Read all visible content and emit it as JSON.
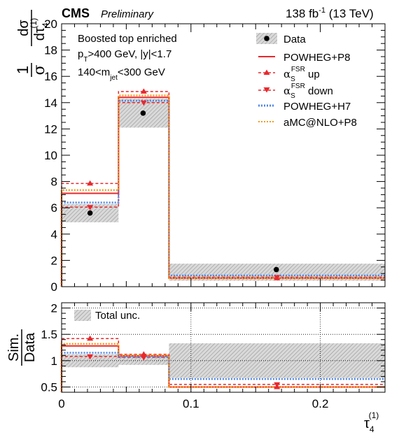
{
  "header": {
    "experiment": "CMS",
    "status": "Preliminary",
    "lumi": "138 fb",
    "lumi_exp": "-1",
    "energy": " (13 TeV)"
  },
  "annotations": {
    "line1": "Boosted top enriched",
    "line2_a": "p",
    "line2_sub": "T",
    "line2_b": ">400 GeV, |y|<1.7",
    "line3_a": "140<m",
    "line3_sub": "jet",
    "line3_b": "<300 GeV"
  },
  "legend": {
    "data": "Data",
    "powheg_p8": "POWHEG+P8",
    "fsr_up_sym": "α",
    "fsr_sub": "S",
    "fsr_sup": "FSR",
    "fsr_up_word": " up",
    "fsr_down_word": " down",
    "powheg_h7": "POWHEG+H7",
    "amc": "aMC@NLO+P8",
    "total_unc": "Total unc."
  },
  "chart_data": [
    {
      "type": "step",
      "ylabel_num": "1",
      "ylabel_den": "σ",
      "ylabel_d_num": "dσ",
      "ylabel_d_den": "dτ",
      "ylabel_sub": "4",
      "ylabel_sup": "(1)",
      "xlim": [
        0,
        0.25
      ],
      "ylim": [
        0,
        20
      ],
      "yticks": [
        "0",
        "2",
        "4",
        "6",
        "8",
        "10",
        "12",
        "14",
        "16",
        "18",
        "20"
      ],
      "bin_edges": [
        0,
        0.044,
        0.083,
        0.25
      ],
      "data": {
        "x": [
          0.022,
          0.063,
          0.166
        ],
        "y": [
          5.6,
          13.2,
          1.3
        ],
        "unc_lo": [
          4.9,
          12.1,
          0.45
        ],
        "unc_hi": [
          6.3,
          14.3,
          1.75
        ]
      },
      "series": [
        {
          "name": "POWHEG+P8",
          "values": [
            7.1,
            14.4,
            0.65
          ],
          "color": "#e8282d",
          "style": "solid"
        },
        {
          "name": "αS FSR up",
          "values": [
            7.85,
            14.85,
            0.65
          ],
          "color": "#e8282d",
          "style": "dashed",
          "marker": "triangle-up"
        },
        {
          "name": "αS FSR down",
          "values": [
            6.05,
            14.0,
            0.72
          ],
          "color": "#e8282d",
          "style": "dashed",
          "marker": "triangle-down"
        },
        {
          "name": "POWHEG+H7",
          "values": [
            6.4,
            14.15,
            0.85
          ],
          "color": "#4f86e8",
          "style": "dotted"
        },
        {
          "name": "aMC@NLO+P8",
          "values": [
            7.35,
            14.55,
            0.65
          ],
          "color": "#f29b1e",
          "style": "dotted"
        }
      ]
    },
    {
      "type": "step-ratio",
      "ylabel_num": "Sim.",
      "ylabel_den": "Data",
      "xlabel": "τ",
      "xlabel_sub": "4",
      "xlabel_sup": "(1)",
      "xlim": [
        0,
        0.25
      ],
      "ylim": [
        0.4,
        2.1
      ],
      "yticks": [
        "0.5",
        "1",
        "1.5",
        "2"
      ],
      "xticks": [
        "0",
        "0.1",
        "0.2"
      ],
      "grid": true,
      "bin_edges": [
        0,
        0.044,
        0.083,
        0.25
      ],
      "unc_lo": [
        0.875,
        0.92,
        0.67
      ],
      "unc_hi": [
        1.125,
        1.08,
        1.33
      ],
      "series": [
        {
          "name": "POWHEG+P8",
          "values": [
            1.28,
            1.09,
            0.5
          ]
        },
        {
          "name": "αS FSR up",
          "values": [
            1.42,
            1.12,
            0.5
          ]
        },
        {
          "name": "αS FSR down",
          "values": [
            1.08,
            1.06,
            0.55
          ]
        },
        {
          "name": "POWHEG+H7",
          "values": [
            1.15,
            1.07,
            0.65
          ]
        },
        {
          "name": "aMC@NLO+P8",
          "values": [
            1.32,
            1.1,
            0.5
          ]
        }
      ]
    }
  ]
}
